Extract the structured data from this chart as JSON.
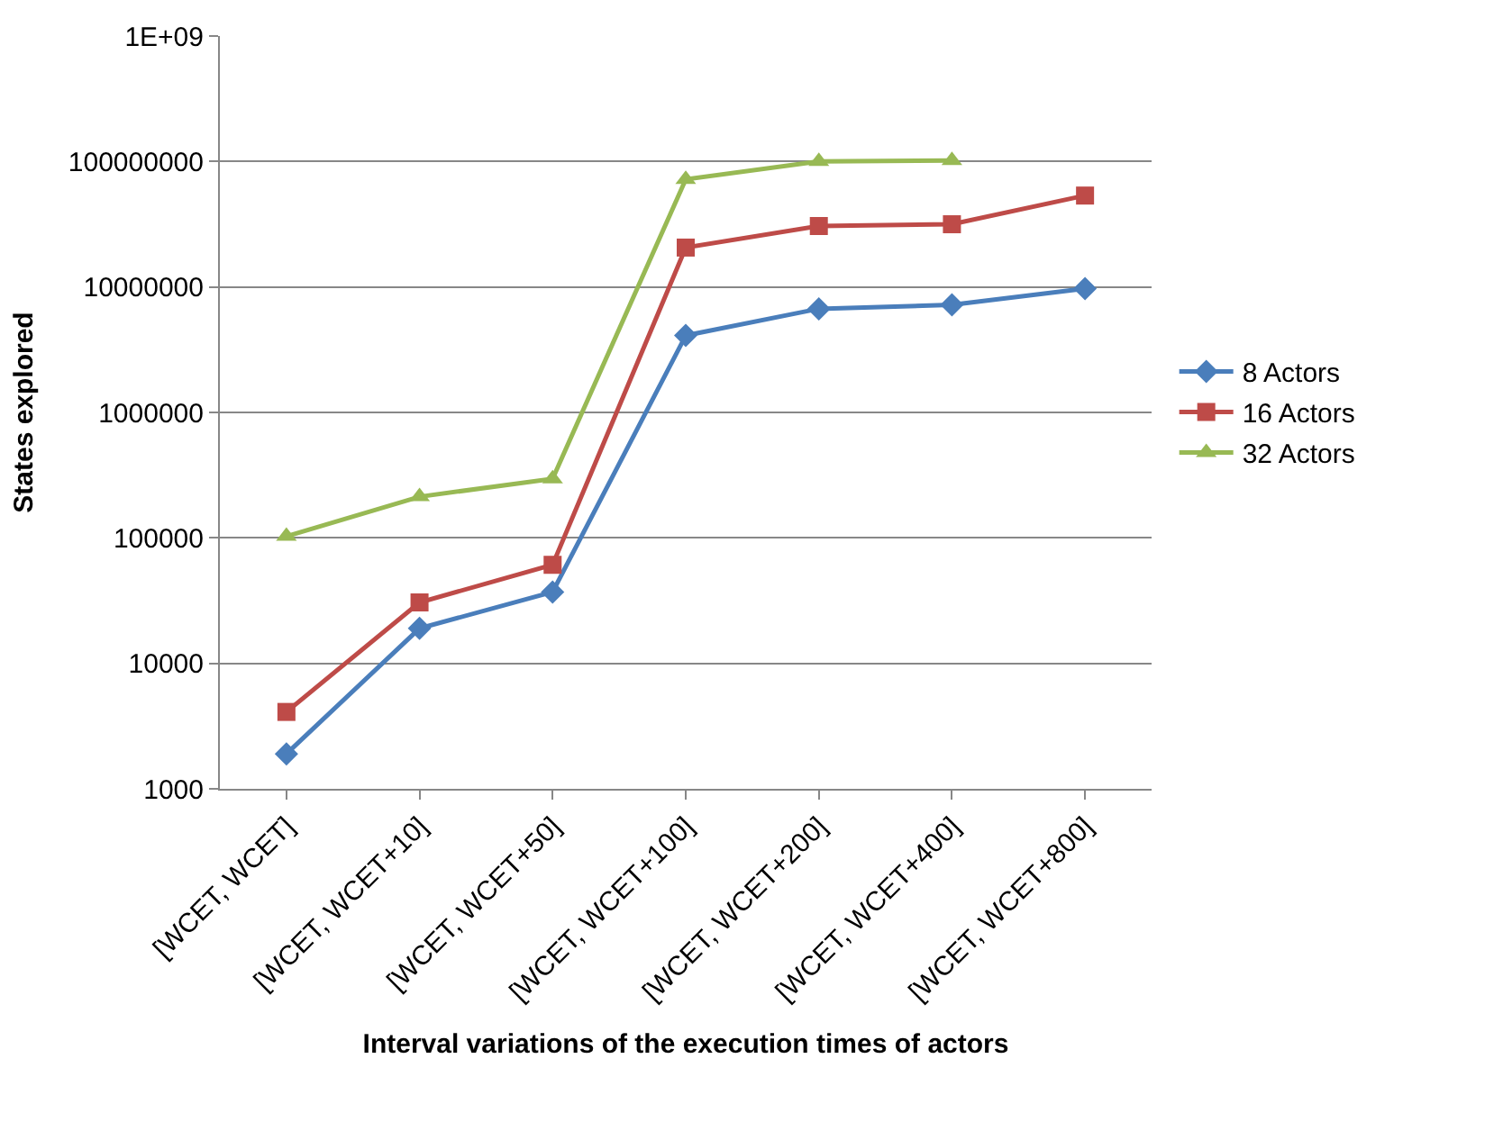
{
  "chart_data": {
    "type": "line",
    "xlabel": "Interval variations of the execution times of actors",
    "ylabel": "States explored",
    "categories": [
      "[WCET, WCET]",
      "[WCET, WCET+10]",
      "[WCET, WCET+50]",
      "[WCET, WCET+100]",
      "[WCET, WCET+200]",
      "[WCET, WCET+400]",
      "[WCET, WCET+800]"
    ],
    "series": [
      {
        "name": "8 Actors",
        "color": "#4a7ebb",
        "marker": "diamond",
        "values": [
          1900,
          19000,
          37000,
          4100000,
          6700000,
          7200000,
          9700000
        ]
      },
      {
        "name": "16 Actors",
        "color": "#be4b48",
        "marker": "square",
        "values": [
          4100,
          30600,
          61000,
          20600000,
          30600000,
          31600000,
          53500000
        ]
      },
      {
        "name": "32 Actors",
        "color": "#98b954",
        "marker": "triangle",
        "values": [
          103000,
          213000,
          296000,
          72000000,
          100000000,
          102000000,
          null
        ]
      }
    ],
    "log": "y",
    "ylim": [
      1000,
      1000000000
    ],
    "yticks": [
      1000,
      10000,
      100000,
      1000000,
      10000000,
      100000000,
      {
        "value": 1000000000,
        "label": "1E+09"
      }
    ],
    "grid": "y",
    "legend": "right"
  }
}
